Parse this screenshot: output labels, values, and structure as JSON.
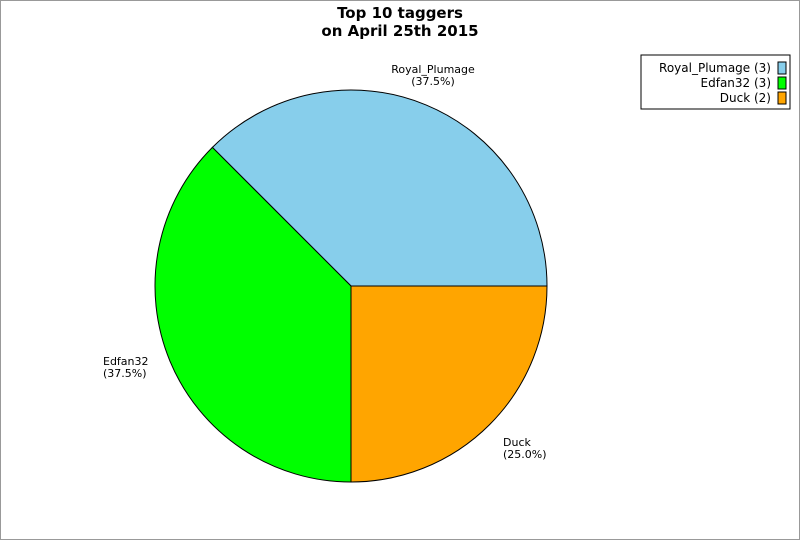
{
  "chart_data": {
    "type": "pie",
    "title": [
      "Top 10 taggers",
      "on April 25th 2015"
    ],
    "start_angle_deg": 0,
    "direction": "counterclockwise",
    "slices": [
      {
        "label": "Royal_Plumage",
        "value": 3,
        "percent_label": "(37.5%)",
        "legend": "Royal_Plumage (3)",
        "color": "#87ceeb"
      },
      {
        "label": "Edfan32",
        "value": 3,
        "percent_label": "(37.5%)",
        "legend": "Edfan32 (3)",
        "color": "#00ff00"
      },
      {
        "label": "Duck",
        "value": 2,
        "percent_label": "(25.0%)",
        "legend": "Duck (2)",
        "color": "#ffa500"
      }
    ],
    "legend_position": "top-right"
  }
}
